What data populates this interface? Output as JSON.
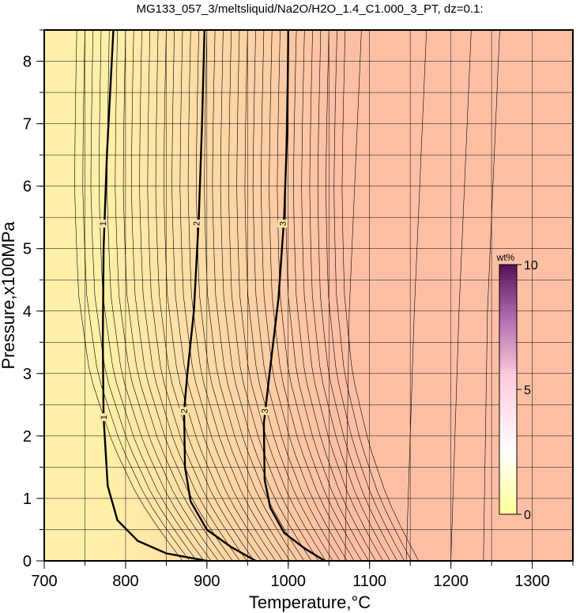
{
  "chart_data": {
    "type": "heatmap",
    "title": "MG133_057_3/meltsliquid/Na2O/H2O_1.4_C1.000_3_PT, dz=0.1:",
    "xlabel": "Temperature,°C",
    "ylabel": "Pressure,x100MPa",
    "xlim": [
      700,
      1350
    ],
    "ylim": [
      0,
      8.5
    ],
    "x_ticks": [
      700,
      800,
      900,
      1000,
      1100,
      1200,
      1300
    ],
    "y_ticks": [
      0,
      1,
      2,
      3,
      4,
      5,
      6,
      7,
      8
    ],
    "grid": true,
    "colorbar": {
      "title": "wt%",
      "range": [
        0,
        10
      ],
      "ticks": [
        0,
        5,
        10
      ],
      "colors": [
        "#ffff99",
        "#ffffff",
        "#ffccdd",
        "#884488",
        "#550055"
      ]
    },
    "background_colors": {
      "low": "#fff0a8",
      "high": "#fdbfa4"
    },
    "labeled_contours": [
      {
        "level": 1,
        "label": "1",
        "points": [
          [
            785,
            8.5
          ],
          [
            777,
            6.5
          ],
          [
            773,
            5.0
          ],
          [
            772,
            3.5
          ],
          [
            773,
            2.3
          ],
          [
            778,
            1.2
          ],
          [
            790,
            0.65
          ],
          [
            815,
            0.32
          ],
          [
            850,
            0.12
          ],
          [
            900,
            0
          ]
        ]
      },
      {
        "level": 2,
        "label": "2",
        "points": [
          [
            897,
            8.5
          ],
          [
            894,
            7.0
          ],
          [
            890,
            5.5
          ],
          [
            884,
            4.0
          ],
          [
            876,
            3.0
          ],
          [
            872,
            2.4
          ],
          [
            873,
            1.5
          ],
          [
            880,
            0.95
          ],
          [
            900,
            0.5
          ],
          [
            930,
            0.22
          ],
          [
            960,
            0
          ]
        ]
      },
      {
        "level": 3,
        "label": "3",
        "points": [
          [
            1000,
            8.5
          ],
          [
            999,
            7.0
          ],
          [
            995,
            5.5
          ],
          [
            988,
            4.2
          ],
          [
            977,
            3.0
          ],
          [
            970,
            2.2
          ],
          [
            971,
            1.3
          ],
          [
            978,
            0.85
          ],
          [
            995,
            0.45
          ],
          [
            1020,
            0.2
          ],
          [
            1045,
            0
          ]
        ]
      }
    ],
    "contour_labels": [
      {
        "label": "1",
        "x": 772,
        "y": 5.4
      },
      {
        "label": "2",
        "x": 887,
        "y": 5.4
      },
      {
        "label": "3",
        "x": 993,
        "y": 5.4
      },
      {
        "label": "1",
        "x": 773,
        "y": 2.3
      },
      {
        "label": "2",
        "x": 872,
        "y": 2.4
      },
      {
        "label": "3",
        "x": 971,
        "y": 2.4
      }
    ]
  }
}
